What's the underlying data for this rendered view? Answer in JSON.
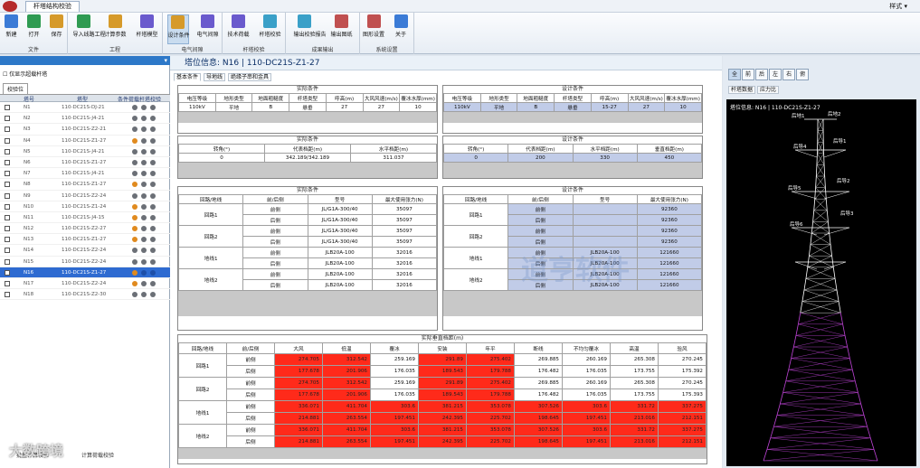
{
  "window": {
    "tab_title": "杆塔结构校验",
    "style_menu": "样式 ▾"
  },
  "ribbon": {
    "groups": [
      {
        "name": "文件",
        "buttons": [
          "新建",
          "打开",
          "保存"
        ]
      },
      {
        "name": "工程",
        "buttons": [
          "导入线路工程",
          "计算参数",
          "杆塔模型"
        ]
      },
      {
        "name": "电气间隙",
        "buttons": [
          "设计条件",
          "电气间隙"
        ]
      },
      {
        "name": "杆塔校验",
        "buttons": [
          "技术荷载",
          "杆塔校验"
        ]
      },
      {
        "name": "成果输出",
        "buttons": [
          "输出校验报告",
          "输出图纸"
        ]
      },
      {
        "name": "系统设置",
        "buttons": [
          "图形设置",
          "关于"
        ]
      }
    ],
    "active_button": "设计条件"
  },
  "sidebar": {
    "checkbox_label": "仅显示超载杆塔",
    "tab": "校验位",
    "headers": [
      "塔号",
      "塔型",
      "条件荷载杆塔校验"
    ],
    "rows": [
      {
        "no": "N1",
        "type": "110-DC21S-DJ-21",
        "dots": [
          "gray",
          "gray",
          "gray"
        ]
      },
      {
        "no": "N2",
        "type": "110-DC21S-J4-21",
        "dots": [
          "gray",
          "gray",
          "gray"
        ]
      },
      {
        "no": "N3",
        "type": "110-DC21S-Z2-21",
        "dots": [
          "gray",
          "gray",
          "gray"
        ]
      },
      {
        "no": "N4",
        "type": "110-DC21S-Z1-27",
        "dots": [
          "orange",
          "gray",
          "gray"
        ]
      },
      {
        "no": "N5",
        "type": "110-DC21S-J4-21",
        "dots": [
          "gray",
          "gray",
          "gray"
        ]
      },
      {
        "no": "N6",
        "type": "110-DC21S-Z1-27",
        "dots": [
          "gray",
          "gray",
          "gray"
        ]
      },
      {
        "no": "N7",
        "type": "110-DC21S-J4-21",
        "dots": [
          "gray",
          "gray",
          "gray"
        ]
      },
      {
        "no": "N8",
        "type": "110-DC21S-Z1-27",
        "dots": [
          "orange",
          "gray",
          "gray"
        ]
      },
      {
        "no": "N9",
        "type": "110-DC21S-Z2-24",
        "dots": [
          "gray",
          "gray",
          "gray"
        ]
      },
      {
        "no": "N10",
        "type": "110-DC21S-Z1-24",
        "dots": [
          "orange",
          "gray",
          "gray"
        ]
      },
      {
        "no": "N11",
        "type": "110-DC21S-J4-15",
        "dots": [
          "orange",
          "gray",
          "gray"
        ]
      },
      {
        "no": "N12",
        "type": "110-DC21S-Z2-27",
        "dots": [
          "orange",
          "gray",
          "gray"
        ]
      },
      {
        "no": "N13",
        "type": "110-DC21S-Z1-27",
        "dots": [
          "orange",
          "gray",
          "gray"
        ]
      },
      {
        "no": "N14",
        "type": "110-DC21S-Z2-24",
        "dots": [
          "gray",
          "gray",
          "gray"
        ]
      },
      {
        "no": "N15",
        "type": "110-DC21S-Z2-24",
        "dots": [
          "gray",
          "gray",
          "gray"
        ]
      },
      {
        "no": "N16",
        "type": "110-DC21S-Z1-27",
        "dots": [
          "orange",
          "blue",
          "blue"
        ],
        "selected": true
      },
      {
        "no": "N17",
        "type": "110-DC21S-Z2-24",
        "dots": [
          "orange",
          "gray",
          "gray"
        ]
      },
      {
        "no": "N18",
        "type": "110-DC21S-Z2-30",
        "dots": [
          "gray",
          "gray",
          "gray"
        ]
      }
    ],
    "footer_left": "批量计算校验",
    "footer_right": "计算荷载校验"
  },
  "center": {
    "title": "塔位信息:  N16  |  110-DC21S-Z1-27",
    "tabs": [
      "基本条件",
      "导地线",
      "绝缘子串和金具"
    ],
    "actual": {
      "title": "实际条件",
      "headers": [
        "电压等级",
        "地形类型",
        "地面粗糙度",
        "杆塔类型",
        "呼高(m)",
        "大风风速(m/s)",
        "覆冰水厚(mm)"
      ],
      "values": [
        "110kV",
        "平地",
        "B",
        "悬垂",
        "27",
        "27",
        "10"
      ]
    },
    "design": {
      "title": "设计条件",
      "headers": [
        "电压等级",
        "地形类型",
        "地面粗糙度",
        "杆塔类型",
        "呼高(m)",
        "大风风速(m/s)",
        "覆冰水厚(mm)"
      ],
      "values": [
        "110kV",
        "平地",
        "B",
        "悬垂",
        "15-27",
        "27",
        "10"
      ]
    },
    "actual2": {
      "title": "实际条件",
      "headers": [
        "转角(°)",
        "代表档距(m)",
        "水平档距(m)"
      ],
      "values": [
        "0",
        "342.189/342.189",
        "311.037"
      ]
    },
    "design2": {
      "title": "设计条件",
      "headers": [
        "转角(°)",
        "代表档距(m)",
        "水平档距(m)",
        "垂直档距(m)"
      ],
      "values": [
        "0",
        "200",
        "330",
        "450"
      ]
    },
    "actual3": {
      "title": "实际条件",
      "headers": [
        "回路/地线",
        "前/后侧",
        "型号",
        "最大使用张力(N)"
      ],
      "groups": [
        {
          "name": "回路1",
          "rows": [
            [
              "前侧",
              "JL/G1A-300/40",
              "35097"
            ],
            [
              "后侧",
              "JL/G1A-300/40",
              "35097"
            ]
          ]
        },
        {
          "name": "回路2",
          "rows": [
            [
              "前侧",
              "JL/G1A-300/40",
              "35097"
            ],
            [
              "后侧",
              "JL/G1A-300/40",
              "35097"
            ]
          ]
        },
        {
          "name": "地线1",
          "rows": [
            [
              "前侧",
              "JLB20A-100",
              "32016"
            ],
            [
              "后侧",
              "JLB20A-100",
              "32016"
            ]
          ]
        },
        {
          "name": "地线2",
          "rows": [
            [
              "前侧",
              "JLB20A-100",
              "32016"
            ],
            [
              "后侧",
              "JLB20A-100",
              "32016"
            ]
          ]
        }
      ]
    },
    "design3": {
      "title": "设计条件",
      "headers": [
        "回路/地线",
        "前/后侧",
        "型号",
        "最大使用张力(N)"
      ],
      "groups": [
        {
          "name": "回路1",
          "rows": [
            [
              "前侧",
              "",
              "92360"
            ],
            [
              "后侧",
              "",
              "92360"
            ]
          ]
        },
        {
          "name": "回路2",
          "rows": [
            [
              "前侧",
              "",
              "92360"
            ],
            [
              "后侧",
              "",
              "92360"
            ]
          ]
        },
        {
          "name": "地线1",
          "rows": [
            [
              "前侧",
              "JLB20A-100",
              "121660"
            ],
            [
              "后侧",
              "JLB20A-100",
              "121660"
            ]
          ]
        },
        {
          "name": "地线2",
          "rows": [
            [
              "前侧",
              "JLB20A-100",
              "121660"
            ],
            [
              "后侧",
              "JLB20A-100",
              "121660"
            ]
          ]
        }
      ]
    },
    "vertical": {
      "title": "实际垂直档距(m)",
      "headers": [
        "回路/地线",
        "前/后侧",
        "大风",
        "低温",
        "覆冰",
        "安装",
        "年平",
        "断线",
        "不均匀覆冰",
        "高温",
        "验风"
      ],
      "groups": [
        {
          "name": "回路1",
          "rows": [
            [
              "前侧",
              "274.705",
              "312.542",
              "259.169",
              "291.89",
              "275.402",
              "269.885",
              "260.169",
              "265.308",
              "270.245"
            ],
            [
              "后侧",
              "177.678",
              "201.906",
              "176.035",
              "189.543",
              "179.788",
              "176.482",
              "176.035",
              "173.755",
              "175.392"
            ]
          ]
        },
        {
          "name": "回路2",
          "rows": [
            [
              "前侧",
              "274.705",
              "312.542",
              "259.169",
              "291.89",
              "275.402",
              "269.885",
              "260.169",
              "265.308",
              "270.245"
            ],
            [
              "后侧",
              "177.678",
              "201.906",
              "176.035",
              "189.543",
              "179.788",
              "176.482",
              "176.035",
              "173.755",
              "175.393"
            ]
          ]
        },
        {
          "name": "地线1",
          "rows": [
            [
              "前侧",
              "336.071",
              "411.704",
              "303.6",
              "381.215",
              "353.078",
              "307.526",
              "303.6",
              "331.72",
              "337.275"
            ],
            [
              "后侧",
              "214.881",
              "263.554",
              "197.451",
              "242.395",
              "225.702",
              "198.645",
              "197.451",
              "213.016",
              "212.151"
            ]
          ]
        },
        {
          "name": "地线2",
          "rows": [
            [
              "前侧",
              "336.071",
              "411.704",
              "303.6",
              "381.215",
              "353.078",
              "307.526",
              "303.6",
              "331.72",
              "337.275"
            ],
            [
              "后侧",
              "214.881",
              "263.554",
              "197.451",
              "242.395",
              "225.702",
              "198.645",
              "197.451",
              "213.016",
              "212.151"
            ]
          ]
        }
      ],
      "red_cols": {
        "回路1": [
          0,
          1,
          3,
          4
        ],
        "回路2": [
          0,
          1,
          3,
          4
        ],
        "地线1": [
          0,
          1,
          2,
          3,
          4,
          5,
          6,
          7,
          8
        ],
        "地线2": [
          0,
          1,
          2,
          3,
          4,
          5,
          6,
          7,
          8
        ]
      }
    }
  },
  "right": {
    "view_buttons": [
      "全",
      "前",
      "后",
      "左",
      "右",
      "俯",
      "上",
      "下"
    ],
    "tabs": [
      "杆塔数据",
      "应力比"
    ],
    "viewport_title": "塔位信息:  N16  |  110-DC21S-Z1-27",
    "labels": [
      "后地1",
      "后地2",
      "后导4",
      "后导1",
      "后导5",
      "后导2",
      "后导6",
      "后导3"
    ]
  },
  "watermark": "道亨软件",
  "watermark_sub": "Daohen INC",
  "footer_watermark": "大数跨境",
  "colors": {
    "selection": "#2e6bd1",
    "header_blue": "#2d78c8",
    "cell_blue": "#c1cce8",
    "cell_red": "#ff2a1a",
    "dot_orange": "#e08a1e",
    "dot_gray": "#6b6f76",
    "dot_blue": "#1e4fa8",
    "tower_main": "#ffffff",
    "tower_lower": "#c044d8"
  }
}
